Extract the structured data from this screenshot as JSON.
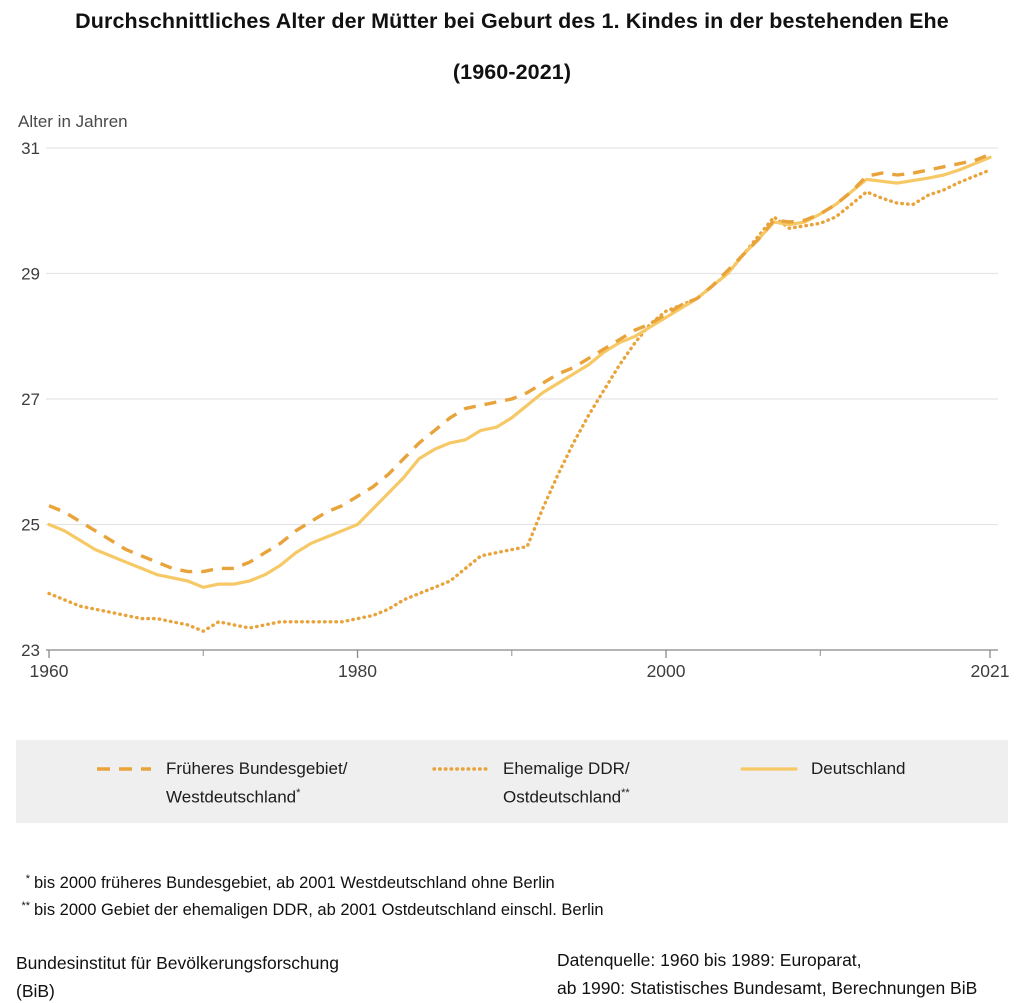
{
  "title": {
    "line1": "Durchschnittliches Alter der Mütter bei Geburt des 1. Kindes in der bestehenden Ehe",
    "line2": "(1960-2021)"
  },
  "y_axis_label": "Alter in Jahren",
  "chart_data": {
    "type": "line",
    "title": "Durchschnittliches Alter der Mütter bei Geburt des 1. Kindes in der bestehenden Ehe (1960-2021)",
    "xlabel": "",
    "ylabel": "Alter in Jahren",
    "ylim": [
      23,
      31
    ],
    "yticks": [
      23,
      25,
      27,
      29,
      31
    ],
    "xlim": [
      1960,
      2021
    ],
    "xticks_major": [
      1960,
      1980,
      2000,
      2021
    ],
    "xticks_minor": [
      1970,
      1990,
      2010
    ],
    "grid": "horizontal",
    "legend_position": "bottom",
    "x": [
      1960,
      1961,
      1962,
      1963,
      1964,
      1965,
      1966,
      1967,
      1968,
      1969,
      1970,
      1971,
      1972,
      1973,
      1974,
      1975,
      1976,
      1977,
      1978,
      1979,
      1980,
      1981,
      1982,
      1983,
      1984,
      1985,
      1986,
      1987,
      1988,
      1989,
      1990,
      1991,
      1992,
      1993,
      1994,
      1995,
      1996,
      1997,
      1998,
      1999,
      2000,
      2001,
      2002,
      2003,
      2004,
      2005,
      2006,
      2007,
      2008,
      2009,
      2010,
      2011,
      2012,
      2013,
      2014,
      2015,
      2016,
      2017,
      2018,
      2019,
      2020,
      2021
    ],
    "series": [
      {
        "name": "Früheres Bundesgebiet/Westdeutschland*",
        "style": "dashed",
        "color": "#E9A33B",
        "values": [
          25.3,
          25.2,
          25.05,
          24.9,
          24.75,
          24.6,
          24.5,
          24.4,
          24.3,
          24.25,
          24.25,
          24.3,
          24.3,
          24.4,
          24.55,
          24.7,
          24.9,
          25.05,
          25.2,
          25.3,
          25.45,
          25.6,
          25.8,
          26.05,
          26.3,
          26.5,
          26.7,
          26.85,
          26.9,
          26.95,
          27.0,
          27.1,
          27.25,
          27.4,
          27.5,
          27.65,
          27.8,
          27.95,
          28.1,
          28.2,
          28.35,
          28.5,
          28.6,
          28.8,
          29.05,
          29.3,
          29.55,
          29.85,
          29.82,
          29.85,
          29.95,
          30.1,
          30.3,
          30.55,
          30.6,
          30.57,
          30.6,
          30.65,
          30.7,
          30.75,
          30.8,
          30.9
        ]
      },
      {
        "name": "Ehemalige DDR/Ostdeutschland**",
        "style": "dotted",
        "color": "#E9A33B",
        "values": [
          23.9,
          23.8,
          23.7,
          23.65,
          23.6,
          23.55,
          23.5,
          23.5,
          23.45,
          23.4,
          23.3,
          23.45,
          23.4,
          23.35,
          23.4,
          23.45,
          23.45,
          23.45,
          23.45,
          23.45,
          23.5,
          23.55,
          23.65,
          23.8,
          23.9,
          24.0,
          24.1,
          24.3,
          24.5,
          24.55,
          24.6,
          24.65,
          25.25,
          25.8,
          26.3,
          26.75,
          27.15,
          27.55,
          27.9,
          28.2,
          28.4,
          28.5,
          28.6,
          28.8,
          29.0,
          29.3,
          29.6,
          29.9,
          29.72,
          29.76,
          29.8,
          29.9,
          30.1,
          30.3,
          30.2,
          30.12,
          30.1,
          30.25,
          30.33,
          30.45,
          30.55,
          30.65
        ]
      },
      {
        "name": "Deutschland",
        "style": "solid",
        "color": "#F6C966",
        "values": [
          25.0,
          24.9,
          24.75,
          24.6,
          24.5,
          24.4,
          24.3,
          24.2,
          24.15,
          24.1,
          24.0,
          24.05,
          24.05,
          24.1,
          24.2,
          24.35,
          24.55,
          24.7,
          24.8,
          24.9,
          25.0,
          25.25,
          25.5,
          25.75,
          26.05,
          26.2,
          26.3,
          26.35,
          26.5,
          26.55,
          26.7,
          26.9,
          27.1,
          27.25,
          27.4,
          27.55,
          27.75,
          27.9,
          28.0,
          28.15,
          28.3,
          28.45,
          28.6,
          28.8,
          29.0,
          29.3,
          29.55,
          29.82,
          29.78,
          29.82,
          29.95,
          30.1,
          30.3,
          30.5,
          30.47,
          30.44,
          30.48,
          30.52,
          30.57,
          30.65,
          30.75,
          30.85
        ]
      }
    ]
  },
  "legend": {
    "items": [
      {
        "line1": "Früheres Bundesgebiet/",
        "line2": "Westdeutschland",
        "sup": "*"
      },
      {
        "line1": "Ehemalige DDR/",
        "line2": "Ostdeutschland",
        "sup": "**"
      },
      {
        "line1": "Deutschland",
        "line2": "",
        "sup": ""
      }
    ]
  },
  "footnotes": [
    {
      "marker": "*",
      "text": "bis 2000 früheres Bundesgebiet, ab 2001 Westdeutschland ohne Berlin"
    },
    {
      "marker": "**",
      "text": "bis 2000 Gebiet der ehemaligen DDR, ab 2001 Ostdeutschland einschl. Berlin"
    }
  ],
  "footer": {
    "left_line1": "Bundesinstitut für Bevölkerungsforschung",
    "left_line2": "(BiB)",
    "right_line1": "Datenquelle: 1960 bis 1989: Europarat,",
    "right_line2": "ab 1990: Statistisches Bundesamt, Berechnungen BiB"
  },
  "colors": {
    "series_orange": "#E9A33B",
    "series_yellow": "#F6C966",
    "legend_background": "#EFEFEF",
    "gridline": "#E5E5E5",
    "axis": "#9B9B9B",
    "tick_text": "#3D3D3D",
    "title_text": "#111111",
    "muted_text": "#4A4A4A"
  }
}
